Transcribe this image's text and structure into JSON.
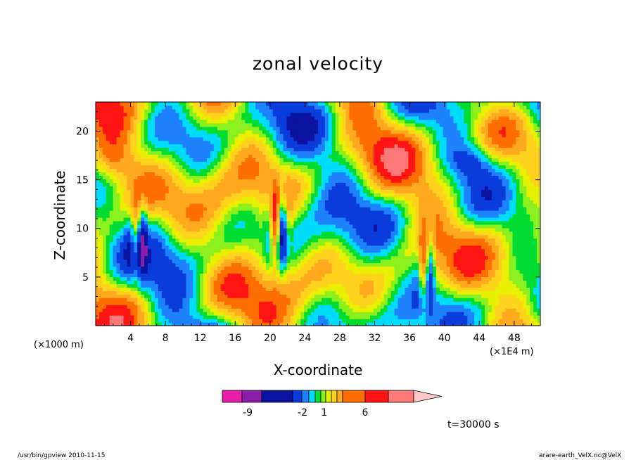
{
  "chart_data": {
    "type": "heatmap",
    "title": "zonal velocity",
    "xlabel": "X-coordinate",
    "ylabel": "Z-coordinate",
    "x_unit": "(×1000 m)",
    "x_scale_note": "(×1E4 m)",
    "xlim": [
      0,
      51
    ],
    "ylim": [
      0,
      23
    ],
    "x_ticks": [
      4,
      8,
      12,
      16,
      20,
      24,
      28,
      32,
      36,
      40,
      44,
      48
    ],
    "y_ticks": [
      5,
      10,
      15,
      20
    ],
    "colorbar": {
      "colors": [
        "#e61ea8",
        "#8c1eaa",
        "#0a14a0",
        "#0a3cdc",
        "#1e82ff",
        "#00dcff",
        "#00dc32",
        "#8cf01e",
        "#e6f000",
        "#ffd21e",
        "#ffaa1e",
        "#ff6e00",
        "#ff1414",
        "#ff7878",
        "#ffc8c8"
      ],
      "labels": [
        "-9",
        "-2",
        "1",
        "6"
      ]
    },
    "annotation": "t=30000 s",
    "grid": false
  },
  "footer": {
    "left": "/usr/bin/gpview   2010-11-15",
    "right": "arare-earth_VelX.nc@VelX"
  }
}
